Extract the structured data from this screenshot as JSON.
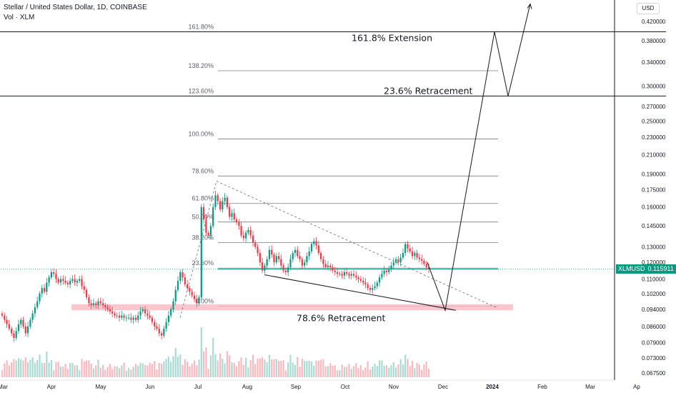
{
  "header": {
    "title": "Stellar / United States Dollar, 1D, COINBASE",
    "indicator": "Vol · XLM"
  },
  "currency_button": "USD",
  "price_tag": {
    "ticker": "XLMUSD",
    "value": "0.115911"
  },
  "colors": {
    "up": "#089981",
    "down": "#f23645",
    "support_zone": "#f7b9c1",
    "fib": "#787b86"
  },
  "chart_data": {
    "type": "candlestick",
    "y_scale": "log",
    "ylim": [
      0.065,
      0.45
    ],
    "y_ticks": [
      "0.420000",
      "0.380000",
      "0.340000",
      "0.300000",
      "0.270000",
      "0.250000",
      "0.230000",
      "0.210000",
      "0.190000",
      "0.175000",
      "0.160000",
      "0.145000",
      "0.130000",
      "0.120000",
      "0.110000",
      "0.102000",
      "0.094000",
      "0.086000",
      "0.079000",
      "0.073000",
      "0.067500"
    ],
    "x_labels": [
      "Mar",
      "Apr",
      "May",
      "Jun",
      "Jul",
      "Aug",
      "Sep",
      "Oct",
      "Nov",
      "Dec",
      "2024",
      "Feb",
      "Mar",
      "Ap"
    ],
    "fib_levels": [
      {
        "label": "0.00%",
        "price": 0.0955
      },
      {
        "label": "23.60%",
        "price": 0.1165
      },
      {
        "label": "38.20%",
        "price": 0.133
      },
      {
        "label": "50.00%",
        "price": 0.148
      },
      {
        "label": "61.80%",
        "price": 0.163
      },
      {
        "label": "78.60%",
        "price": 0.188
      },
      {
        "label": "100.00%",
        "price": 0.228
      },
      {
        "label": "123.60%",
        "price": 0.285
      },
      {
        "label": "138.20%",
        "price": 0.325
      },
      {
        "label": "161.80%",
        "price": 0.398
      }
    ],
    "annotations": [
      "161.8% Extension",
      "23.6% Retracement",
      "78.6% Retracement"
    ],
    "support_zone": [
      0.0935,
      0.0965
    ],
    "extension_line_price": 0.398,
    "retracement_line_price": 0.285,
    "current_price": 0.115911,
    "closes": [
      0.091,
      0.089,
      0.087,
      0.085,
      0.083,
      0.081,
      0.084,
      0.087,
      0.089,
      0.086,
      0.083,
      0.086,
      0.089,
      0.092,
      0.095,
      0.098,
      0.102,
      0.105,
      0.103,
      0.108,
      0.111,
      0.114,
      0.113,
      0.11,
      0.108,
      0.11,
      0.109,
      0.108,
      0.107,
      0.109,
      0.11,
      0.108,
      0.109,
      0.11,
      0.106,
      0.104,
      0.1,
      0.097,
      0.096,
      0.097,
      0.096,
      0.098,
      0.097,
      0.096,
      0.095,
      0.094,
      0.093,
      0.092,
      0.091,
      0.091,
      0.09,
      0.091,
      0.09,
      0.09,
      0.09,
      0.089,
      0.09,
      0.089,
      0.091,
      0.093,
      0.094,
      0.092,
      0.091,
      0.09,
      0.088,
      0.086,
      0.085,
      0.083,
      0.082,
      0.085,
      0.088,
      0.091,
      0.094,
      0.098,
      0.104,
      0.109,
      0.114,
      0.111,
      0.107,
      0.105,
      0.103,
      0.101,
      0.099,
      0.097,
      0.1,
      0.16,
      0.15,
      0.14,
      0.138,
      0.145,
      0.16,
      0.17,
      0.165,
      0.158,
      0.165,
      0.168,
      0.16,
      0.152,
      0.155,
      0.15,
      0.148,
      0.145,
      0.138,
      0.136,
      0.14,
      0.142,
      0.138,
      0.133,
      0.13,
      0.126,
      0.12,
      0.115,
      0.118,
      0.122,
      0.128,
      0.125,
      0.12,
      0.124,
      0.122,
      0.118,
      0.115,
      0.114,
      0.117,
      0.122,
      0.126,
      0.128,
      0.124,
      0.122,
      0.118,
      0.12,
      0.124,
      0.127,
      0.132,
      0.134,
      0.131,
      0.126,
      0.122,
      0.119,
      0.117,
      0.118,
      0.117,
      0.115,
      0.114,
      0.113,
      0.113,
      0.112,
      0.114,
      0.113,
      0.112,
      0.113,
      0.112,
      0.111,
      0.11,
      0.109,
      0.108,
      0.107,
      0.105,
      0.104,
      0.105,
      0.106,
      0.108,
      0.111,
      0.113,
      0.115,
      0.114,
      0.116,
      0.118,
      0.12,
      0.122,
      0.12,
      0.123,
      0.126,
      0.132,
      0.129,
      0.127,
      0.124,
      0.126,
      0.123,
      0.122,
      0.121,
      0.119,
      0.117,
      0.115911
    ]
  }
}
